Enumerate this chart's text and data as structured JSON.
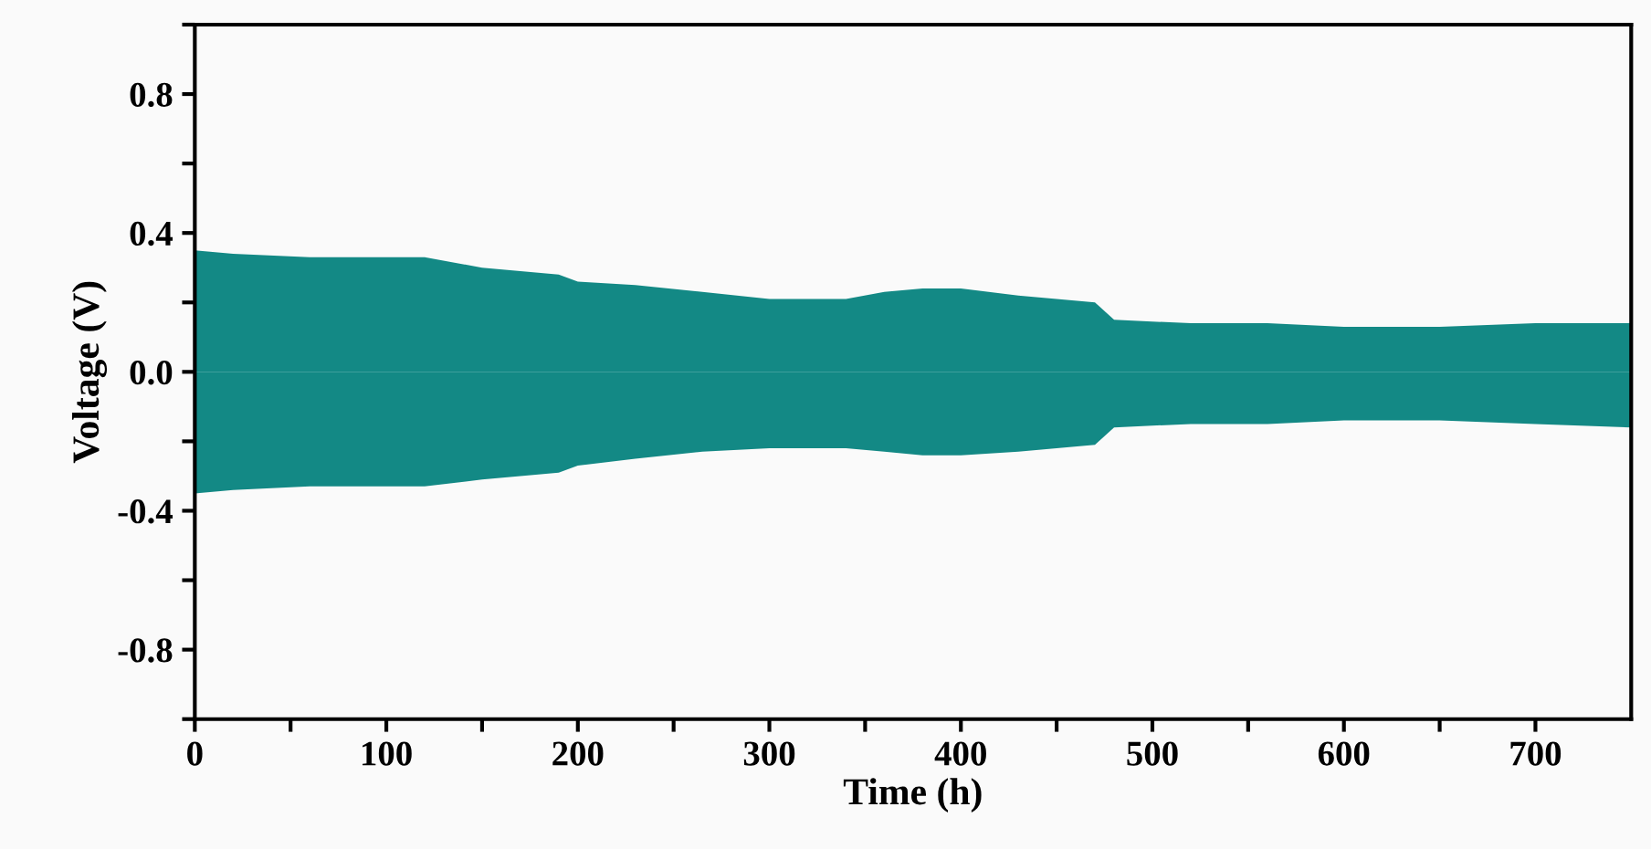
{
  "chart_data": {
    "type": "area",
    "xlabel": "Time (h)",
    "ylabel": "Voltage (V)",
    "x": [
      0,
      20,
      60,
      90,
      120,
      150,
      190,
      200,
      230,
      265,
      300,
      340,
      360,
      380,
      400,
      430,
      470,
      480,
      520,
      560,
      600,
      650,
      700,
      750
    ],
    "series": [
      {
        "color": "#138985",
        "values": [
          0.35,
          0.34,
          0.33,
          0.33,
          0.33,
          0.3,
          0.28,
          0.26,
          0.25,
          0.23,
          0.21,
          0.21,
          0.23,
          0.24,
          0.24,
          0.22,
          0.2,
          0.15,
          0.14,
          0.14,
          0.13,
          0.13,
          0.14,
          0.14
        ]
      },
      {
        "color": "#138985",
        "values": [
          -0.35,
          -0.34,
          -0.33,
          -0.33,
          -0.33,
          -0.31,
          -0.29,
          -0.27,
          -0.25,
          -0.23,
          -0.22,
          -0.22,
          -0.23,
          -0.24,
          -0.24,
          -0.23,
          -0.21,
          -0.16,
          -0.15,
          -0.15,
          -0.14,
          -0.14,
          -0.15,
          -0.16
        ]
      }
    ],
    "xlim": [
      0,
      750
    ],
    "ylim": [
      -1.0,
      1.0
    ],
    "xticks": [
      0,
      {
        "value": 50,
        "label": null
      },
      100,
      {
        "value": 150,
        "label": null
      },
      200,
      {
        "value": 250,
        "label": null
      },
      300,
      {
        "value": 350,
        "label": null
      },
      400,
      {
        "value": 450,
        "label": null
      },
      500,
      {
        "value": 550,
        "label": null
      },
      600,
      {
        "value": 650,
        "label": null
      },
      700
    ],
    "yticks": [
      {
        "value": -1.0,
        "label": null
      },
      -0.8,
      {
        "value": -0.6,
        "label": null
      },
      -0.4,
      {
        "value": -0.2,
        "label": null
      },
      {
        "value": 0.0,
        "label": "0.0"
      },
      {
        "value": 0.2,
        "label": null
      },
      0.4,
      {
        "value": 0.6,
        "label": null
      },
      0.8,
      {
        "value": 1.0,
        "label": null
      }
    ],
    "grid": false
  }
}
